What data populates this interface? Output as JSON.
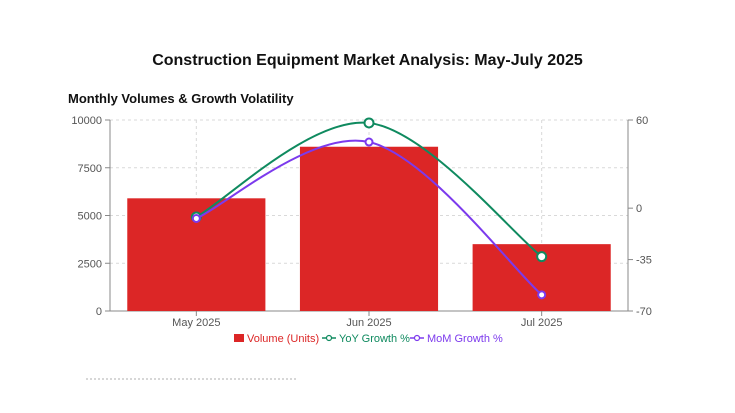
{
  "title": "Construction Equipment Market Analysis: May-July 2025",
  "subtitle": "Monthly Volumes & Growth Volatility",
  "colors": {
    "volume": "#dc2626",
    "yoy": "#0f8a5f",
    "mom": "#7c3aed",
    "grid": "#d9d9d9",
    "axis": "#888888"
  },
  "chart_data": {
    "type": "bar",
    "categories": [
      "May 2025",
      "Jun 2025",
      "Jul 2025"
    ],
    "series": [
      {
        "name": "Volume (Units)",
        "type": "bar",
        "axis": "left",
        "values": [
          5900,
          8600,
          3500
        ]
      },
      {
        "name": "YoY Growth %",
        "type": "line",
        "axis": "right",
        "values": [
          -6,
          58,
          -33
        ]
      },
      {
        "name": "MoM Growth %",
        "type": "line",
        "axis": "right",
        "values": [
          -7,
          45,
          -59
        ]
      }
    ],
    "y_left": {
      "min": 0,
      "max": 10000,
      "ticks": [
        "0",
        "2500",
        "5000",
        "7500",
        "10000"
      ]
    },
    "y_right": {
      "min": -70,
      "max": 60,
      "ticks": [
        "-70",
        "-35",
        "0",
        "60"
      ]
    },
    "grid": true,
    "legend_position": "bottom"
  }
}
